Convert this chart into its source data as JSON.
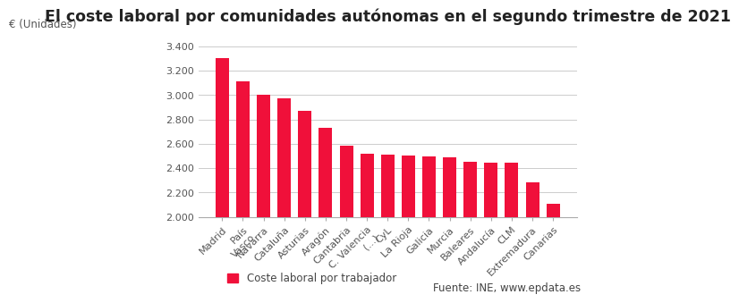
{
  "title": "El coste laboral por comunidades autónomas en el segundo trimestre de 2021",
  "ylabel_text": "€ (Unidades)",
  "categories": [
    "Madrid",
    "País\nVasco",
    "Navarra",
    "Cataluña",
    "Asturias",
    "Aragón",
    "Cantabria",
    "C. Valencia\n(...)",
    "CyL",
    "La Rioja",
    "Galicia",
    "Murcia",
    "Baleares",
    "Andalucía",
    "CLM",
    "Extremadura",
    "Canarias"
  ],
  "values": [
    3300,
    3113,
    3000,
    2970,
    2870,
    2730,
    2585,
    2520,
    2510,
    2505,
    2495,
    2490,
    2455,
    2445,
    2445,
    2285,
    2110
  ],
  "bar_color": "#f0103a",
  "ylim_min": 2000,
  "ylim_max": 3500,
  "yticks": [
    2000,
    2200,
    2400,
    2600,
    2800,
    3000,
    3200,
    3400
  ],
  "ytick_labels": [
    "2.000",
    "2.200",
    "2.400",
    "2.600",
    "2.800",
    "3.000",
    "3.200",
    "3.400"
  ],
  "legend_label": "Coste laboral por trabajador",
  "source_text": "Fuente: INE, www.epdata.es",
  "background_color": "#ffffff",
  "grid_color": "#cccccc",
  "title_fontsize": 12.5,
  "axis_label_fontsize": 8.5,
  "tick_fontsize": 8,
  "legend_fontsize": 8.5
}
